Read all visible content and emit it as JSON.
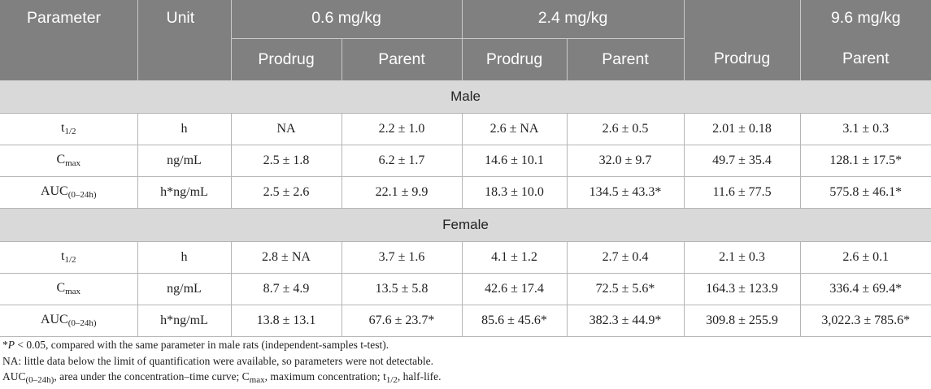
{
  "header": {
    "parameter": "Parameter",
    "unit": "Unit",
    "dose1": "0.6 mg/kg",
    "dose2": "2.4 mg/kg",
    "dose3": "9.6 mg/kg",
    "sub": [
      "Prodrug",
      "Parent",
      "Prodrug",
      "Parent",
      "Prodrug",
      "Parent"
    ]
  },
  "groups": {
    "male": "Male",
    "female": "Female"
  },
  "params": {
    "t_main": "t",
    "t_sub": "1/2",
    "c_main": "C",
    "c_sub": "max",
    "auc_main": "AUC",
    "auc_sub": "(0–24h)"
  },
  "units": {
    "h": "h",
    "ngml": "ng/mL",
    "hngml": "h*ng/mL"
  },
  "male": {
    "t": [
      "NA",
      "2.2 ± 1.0",
      "2.6 ± NA",
      "2.6 ± 0.5",
      "2.01 ± 0.18",
      "3.1 ± 0.3"
    ],
    "c": [
      "2.5 ± 1.8",
      "6.2 ± 1.7",
      "14.6 ± 10.1",
      "32.0 ± 9.7",
      "49.7 ± 35.4",
      "128.1 ± 17.5*"
    ],
    "auc": [
      "2.5 ± 2.6",
      "22.1 ± 9.9",
      "18.3 ± 10.0",
      "134.5 ± 43.3*",
      "11.6 ± 77.5",
      "575.8 ± 46.1*"
    ]
  },
  "female": {
    "t": [
      "2.8 ± NA",
      "3.7 ± 1.6",
      "4.1 ± 1.2",
      "2.7 ± 0.4",
      "2.1 ± 0.3",
      "2.6 ± 0.1"
    ],
    "c": [
      "8.7 ± 4.9",
      "13.5 ± 5.8",
      "42.6 ± 17.4",
      "72.5 ± 5.6*",
      "164.3 ± 123.9",
      "336.4 ± 69.4*"
    ],
    "auc": [
      "13.8 ± 13.1",
      "67.6 ± 23.7*",
      "85.6 ± 45.6*",
      "382.3 ± 44.9*",
      "309.8 ± 255.9",
      "3,022.3 ± 785.6*"
    ]
  },
  "notes": {
    "n1_star": "*",
    "n1_p": "P",
    "n1_rest": " < 0.05, compared with the same parameter in male rats (independent-samples t-test).",
    "n2": "NA: little data below the limit of quantification were available, so parameters were not detectable.",
    "n3_a": ", area under the concentration–time curve; ",
    "n3_b": ", maximum concentration; ",
    "n3_c": ", half-life."
  }
}
